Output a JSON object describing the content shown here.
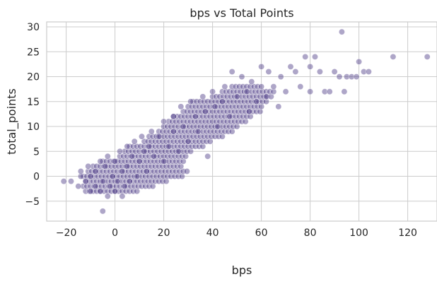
{
  "chart_data": {
    "type": "scatter",
    "title": "bps vs Total Points",
    "xlabel": "bps",
    "ylabel": "total_points",
    "xlim": [
      -28,
      132
    ],
    "ylim": [
      -9,
      31
    ],
    "xticks": [
      -20,
      0,
      20,
      40,
      60,
      80,
      100,
      120
    ],
    "yticks": [
      -5,
      0,
      5,
      10,
      15,
      20,
      25,
      30
    ],
    "grid": true,
    "legend": "none",
    "point_color": "#4b3a85",
    "point_opacity": 0.45,
    "series": [
      {
        "points": [
          [
            -21,
            -1
          ],
          [
            -18,
            -1
          ],
          [
            -15,
            -2
          ],
          [
            -14,
            0
          ],
          [
            -14,
            1
          ],
          [
            -12,
            -1
          ],
          [
            -11,
            2
          ],
          [
            -10,
            -3
          ],
          [
            -10,
            0
          ],
          [
            -8,
            -2
          ],
          [
            -8,
            1
          ],
          [
            -6,
            -3
          ],
          [
            -6,
            3
          ],
          [
            -5,
            -7
          ],
          [
            -5,
            -1
          ],
          [
            -4,
            2
          ],
          [
            -3,
            -4
          ],
          [
            -3,
            4
          ],
          [
            -2,
            -2
          ],
          [
            -1,
            0
          ],
          [
            0,
            -3
          ],
          [
            0,
            3
          ],
          [
            1,
            -1
          ],
          [
            2,
            5
          ],
          [
            3,
            -4
          ],
          [
            3,
            1
          ],
          [
            4,
            -2
          ],
          [
            5,
            6
          ],
          [
            5,
            2
          ],
          [
            6,
            -1
          ],
          [
            7,
            4
          ],
          [
            8,
            7
          ],
          [
            9,
            0
          ],
          [
            10,
            3
          ],
          [
            11,
            8
          ],
          [
            12,
            5
          ],
          [
            13,
            1
          ],
          [
            14,
            6
          ],
          [
            15,
            9
          ],
          [
            16,
            4
          ],
          [
            18,
            8
          ],
          [
            20,
            11
          ],
          [
            20,
            3
          ],
          [
            22,
            6
          ],
          [
            24,
            12
          ],
          [
            24,
            9
          ],
          [
            26,
            5
          ],
          [
            27,
            14
          ],
          [
            28,
            10
          ],
          [
            30,
            7
          ],
          [
            31,
            15
          ],
          [
            33,
            12
          ],
          [
            34,
            9
          ],
          [
            36,
            16
          ],
          [
            37,
            13
          ],
          [
            38,
            4
          ],
          [
            40,
            17
          ],
          [
            41,
            14
          ],
          [
            42,
            10
          ],
          [
            44,
            15
          ],
          [
            45,
            18
          ],
          [
            47,
            12
          ],
          [
            48,
            21
          ],
          [
            50,
            16
          ],
          [
            52,
            20
          ],
          [
            54,
            17
          ],
          [
            55,
            13
          ],
          [
            56,
            19
          ],
          [
            58,
            15
          ],
          [
            60,
            22
          ],
          [
            62,
            16
          ],
          [
            63,
            21
          ],
          [
            65,
            18
          ],
          [
            67,
            14
          ],
          [
            68,
            20
          ],
          [
            70,
            17
          ],
          [
            72,
            22
          ],
          [
            74,
            21
          ],
          [
            76,
            18
          ],
          [
            78,
            24
          ],
          [
            80,
            17
          ],
          [
            80,
            22
          ],
          [
            82,
            24
          ],
          [
            84,
            21
          ],
          [
            86,
            17
          ],
          [
            88,
            17
          ],
          [
            90,
            21
          ],
          [
            92,
            20
          ],
          [
            93,
            29
          ],
          [
            94,
            17
          ],
          [
            95,
            20
          ],
          [
            97,
            20
          ],
          [
            99,
            20
          ],
          [
            100,
            23
          ],
          [
            102,
            21
          ],
          [
            104,
            21
          ],
          [
            114,
            24
          ],
          [
            128,
            24
          ]
        ]
      }
    ],
    "dense_bands": [
      {
        "y": -3,
        "x_from": -12,
        "x_to": 10
      },
      {
        "y": -2,
        "x_from": -13,
        "x_to": 16
      },
      {
        "y": -1,
        "x_from": -12,
        "x_to": 22
      },
      {
        "y": 0,
        "x_from": -13,
        "x_to": 28
      },
      {
        "y": 1,
        "x_from": -11,
        "x_to": 30
      },
      {
        "y": 2,
        "x_from": -9,
        "x_to": 28
      },
      {
        "y": 3,
        "x_from": -5,
        "x_to": 28
      },
      {
        "y": 4,
        "x_from": 2,
        "x_to": 30
      },
      {
        "y": 5,
        "x_from": 4,
        "x_to": 32
      },
      {
        "y": 6,
        "x_from": 6,
        "x_to": 36
      },
      {
        "y": 7,
        "x_from": 12,
        "x_to": 40
      },
      {
        "y": 8,
        "x_from": 14,
        "x_to": 44
      },
      {
        "y": 9,
        "x_from": 18,
        "x_to": 48
      },
      {
        "y": 10,
        "x_from": 20,
        "x_to": 50
      },
      {
        "y": 11,
        "x_from": 22,
        "x_to": 54
      },
      {
        "y": 12,
        "x_from": 24,
        "x_to": 56
      },
      {
        "y": 13,
        "x_from": 28,
        "x_to": 60
      },
      {
        "y": 14,
        "x_from": 30,
        "x_to": 60
      },
      {
        "y": 15,
        "x_from": 32,
        "x_to": 62
      },
      {
        "y": 16,
        "x_from": 40,
        "x_to": 64
      },
      {
        "y": 17,
        "x_from": 44,
        "x_to": 66
      },
      {
        "y": 18,
        "x_from": 48,
        "x_to": 60
      }
    ]
  }
}
